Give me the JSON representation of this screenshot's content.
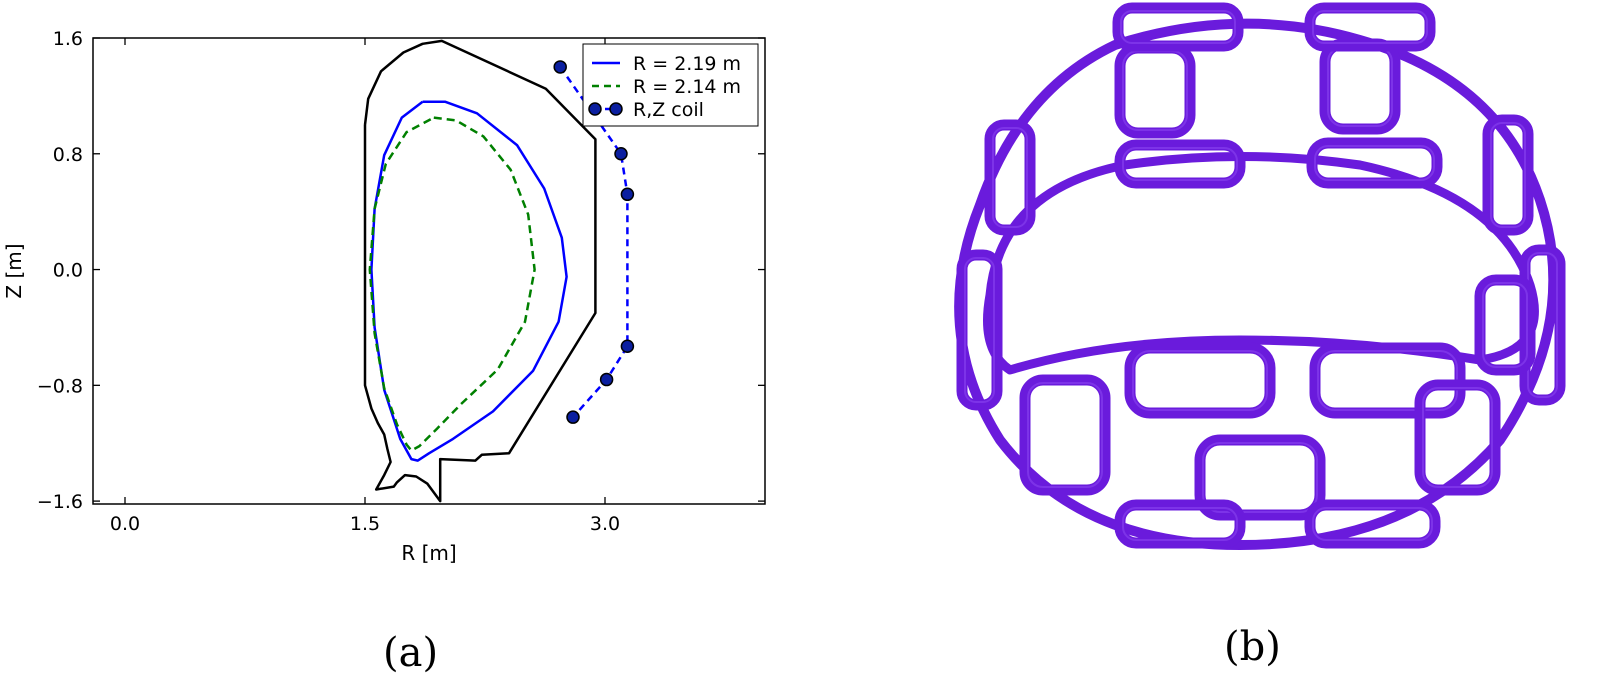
{
  "chart_data": {
    "type": "line",
    "xlabel": "R [m]",
    "ylabel": "Z [m]",
    "xlim": [
      -0.2,
      4.0
    ],
    "ylim": [
      -1.62,
      1.6
    ],
    "xticks": [
      0.0,
      1.5,
      3.0
    ],
    "xtick_labels": [
      "0.0",
      "1.5",
      "3.0"
    ],
    "yticks": [
      1.6,
      0.8,
      0.0,
      -0.8,
      -1.6
    ],
    "ytick_labels": [
      "1.6",
      "0.8",
      "0.0",
      "−0.8",
      "−1.6"
    ],
    "legend_position": "top-right",
    "grid": false,
    "series": [
      {
        "name": "R = 2.19 m",
        "style": "solid",
        "color": "#0000ff",
        "points": [
          [
            1.86,
            1.16
          ],
          [
            2.0,
            1.16
          ],
          [
            2.2,
            1.08
          ],
          [
            2.45,
            0.86
          ],
          [
            2.62,
            0.56
          ],
          [
            2.73,
            0.22
          ],
          [
            2.76,
            -0.05
          ],
          [
            2.71,
            -0.36
          ],
          [
            2.55,
            -0.7
          ],
          [
            2.3,
            -0.98
          ],
          [
            2.05,
            -1.17
          ],
          [
            1.9,
            -1.27
          ],
          [
            1.83,
            -1.32
          ],
          [
            1.79,
            -1.31
          ],
          [
            1.72,
            -1.17
          ],
          [
            1.62,
            -0.83
          ],
          [
            1.56,
            -0.4
          ],
          [
            1.54,
            0.0
          ],
          [
            1.56,
            0.42
          ],
          [
            1.62,
            0.79
          ],
          [
            1.73,
            1.05
          ],
          [
            1.86,
            1.16
          ]
        ]
      },
      {
        "name": "R = 2.14 m",
        "style": "dashed",
        "color": "#008000",
        "points": [
          [
            1.93,
            1.05
          ],
          [
            2.07,
            1.03
          ],
          [
            2.24,
            0.92
          ],
          [
            2.41,
            0.69
          ],
          [
            2.52,
            0.38
          ],
          [
            2.56,
            0.0
          ],
          [
            2.5,
            -0.36
          ],
          [
            2.33,
            -0.69
          ],
          [
            2.1,
            -0.93
          ],
          [
            1.95,
            -1.1
          ],
          [
            1.84,
            -1.22
          ],
          [
            1.79,
            -1.25
          ],
          [
            1.76,
            -1.21
          ],
          [
            1.7,
            -1.07
          ],
          [
            1.62,
            -0.82
          ],
          [
            1.56,
            -0.44
          ],
          [
            1.53,
            0.0
          ],
          [
            1.56,
            0.42
          ],
          [
            1.63,
            0.73
          ],
          [
            1.76,
            0.95
          ],
          [
            1.93,
            1.05
          ]
        ]
      },
      {
        "name": "R,Z coil",
        "style": "dashed-markers",
        "color": "#0000ff",
        "marker_color": "#0b1fa0",
        "points": [
          [
            2.72,
            1.4
          ],
          [
            3.1,
            0.8
          ],
          [
            3.14,
            0.52
          ],
          [
            3.14,
            -0.53
          ],
          [
            3.01,
            -0.76
          ],
          [
            2.8,
            -1.02
          ]
        ]
      }
    ],
    "vessel_boundary": [
      [
        1.5,
        1.0
      ],
      [
        1.52,
        1.18
      ],
      [
        1.6,
        1.37
      ],
      [
        1.74,
        1.5
      ],
      [
        1.86,
        1.56
      ],
      [
        1.98,
        1.58
      ],
      [
        2.63,
        1.25
      ],
      [
        2.94,
        0.9
      ],
      [
        2.94,
        -0.3
      ],
      [
        2.4,
        -1.27
      ],
      [
        2.23,
        -1.28
      ],
      [
        2.19,
        -1.32
      ],
      [
        1.97,
        -1.31
      ],
      [
        1.97,
        -1.44
      ],
      [
        1.97,
        -1.6
      ],
      [
        1.89,
        -1.48
      ],
      [
        1.82,
        -1.43
      ],
      [
        1.75,
        -1.42
      ],
      [
        1.7,
        -1.47
      ],
      [
        1.68,
        -1.5
      ],
      [
        1.57,
        -1.52
      ],
      [
        1.62,
        -1.42
      ],
      [
        1.66,
        -1.33
      ],
      [
        1.64,
        -1.24
      ],
      [
        1.62,
        -1.14
      ],
      [
        1.58,
        -1.06
      ],
      [
        1.54,
        -0.96
      ],
      [
        1.5,
        -0.8
      ],
      [
        1.5,
        1.0
      ]
    ],
    "vessel_color": "#000000"
  },
  "coil_color": "#6a1bdc",
  "captions": {
    "a": "(a)",
    "b": "(b)"
  }
}
